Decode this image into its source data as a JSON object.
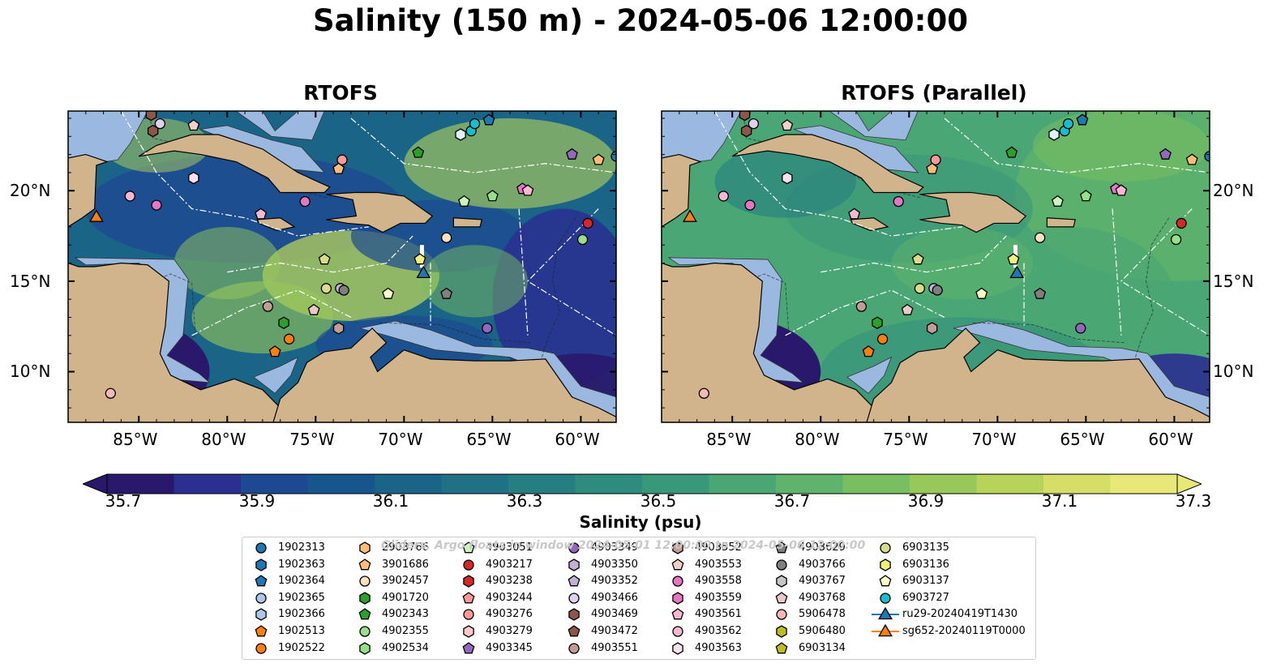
{
  "figure": {
    "title": "Salinity (150 m) - 2024-05-06 12:00:00",
    "colorbar_label": "Salinity (psu)",
    "watermark": "Gliders, Argo floats in window 2024-05-01 12:00:00 to 2024-05-06 12:00:00"
  },
  "panels": [
    {
      "title": "RTOFS"
    },
    {
      "title": "RTOFS (Parallel)"
    }
  ],
  "axes": {
    "lon_ticks": [
      "85°W",
      "80°W",
      "75°W",
      "70°W",
      "65°W",
      "60°W"
    ],
    "lat_ticks": [
      "20°N",
      "15°N",
      "10°N"
    ]
  },
  "colorbar": {
    "ticks": [
      "35.7",
      "35.9",
      "36.1",
      "36.3",
      "36.5",
      "36.7",
      "36.9",
      "37.1",
      "37.3"
    ],
    "min": 35.7,
    "max": 37.3,
    "extend": "both",
    "colormap": "haline",
    "colors": [
      "#2a186c",
      "#2a2f90",
      "#1d4992",
      "#16568c",
      "#1a6487",
      "#207185",
      "#267e82",
      "#2e8b7e",
      "#3a987a",
      "#4aa674",
      "#5fb36c",
      "#79be60",
      "#97c859",
      "#b8d35a",
      "#d6de68",
      "#e8e878"
    ]
  },
  "map_colors": {
    "land": "#d2b48c",
    "shallow": "#9ab8e0",
    "deep_min": "#2a186c",
    "high_salinity": "#d6de68"
  },
  "legend": {
    "columns": [
      [
        {
          "label": "1902313",
          "marker": "circle",
          "color": "#1f77b4"
        },
        {
          "label": "1902363",
          "marker": "hexagon",
          "color": "#1f77b4"
        },
        {
          "label": "1902364",
          "marker": "pentagon",
          "color": "#1f77b4"
        },
        {
          "label": "1902365",
          "marker": "circle",
          "color": "#aec7e8"
        },
        {
          "label": "1902366",
          "marker": "hexagon",
          "color": "#aec7e8"
        },
        {
          "label": "1902513",
          "marker": "pentagon",
          "color": "#ff7f0e"
        },
        {
          "label": "1902522",
          "marker": "circle",
          "color": "#ff7f0e"
        }
      ],
      [
        {
          "label": "2903766",
          "marker": "hexagon",
          "color": "#ffbb78"
        },
        {
          "label": "3901686",
          "marker": "pentagon",
          "color": "#ffbb78"
        },
        {
          "label": "3902457",
          "marker": "circle",
          "color": "#ffe0c0"
        },
        {
          "label": "4901720",
          "marker": "hexagon",
          "color": "#2ca02c"
        },
        {
          "label": "4902343",
          "marker": "pentagon",
          "color": "#2ca02c"
        },
        {
          "label": "4902355",
          "marker": "circle",
          "color": "#98df8a"
        },
        {
          "label": "4902534",
          "marker": "hexagon",
          "color": "#98df8a"
        }
      ],
      [
        {
          "label": "4903051",
          "marker": "pentagon",
          "color": "#c8f5c0"
        },
        {
          "label": "4903217",
          "marker": "circle",
          "color": "#d62728"
        },
        {
          "label": "4903238",
          "marker": "hexagon",
          "color": "#d62728"
        },
        {
          "label": "4903244",
          "marker": "pentagon",
          "color": "#ff9896"
        },
        {
          "label": "4903276",
          "marker": "circle",
          "color": "#ff9896"
        },
        {
          "label": "4903279",
          "marker": "hexagon",
          "color": "#ffc8c8"
        },
        {
          "label": "4903345",
          "marker": "pentagon",
          "color": "#9467bd"
        }
      ],
      [
        {
          "label": "4903349",
          "marker": "circle",
          "color": "#9467bd"
        },
        {
          "label": "4903350",
          "marker": "hexagon",
          "color": "#c5b0d5"
        },
        {
          "label": "4903352",
          "marker": "pentagon",
          "color": "#c5b0d5"
        },
        {
          "label": "4903466",
          "marker": "circle",
          "color": "#e0d0f0"
        },
        {
          "label": "4903469",
          "marker": "hexagon",
          "color": "#8c564b"
        },
        {
          "label": "4903472",
          "marker": "pentagon",
          "color": "#8c564b"
        },
        {
          "label": "4903551",
          "marker": "circle",
          "color": "#c49c94"
        }
      ],
      [
        {
          "label": "4903552",
          "marker": "hexagon",
          "color": "#c49c94"
        },
        {
          "label": "4903553",
          "marker": "pentagon",
          "color": "#f0d0c8"
        },
        {
          "label": "4903558",
          "marker": "circle",
          "color": "#e377c2"
        },
        {
          "label": "4903559",
          "marker": "hexagon",
          "color": "#e377c2"
        },
        {
          "label": "4903561",
          "marker": "pentagon",
          "color": "#f7b6d2"
        },
        {
          "label": "4903562",
          "marker": "circle",
          "color": "#f7b6d2"
        },
        {
          "label": "4903563",
          "marker": "hexagon",
          "color": "#fbe0ee"
        }
      ],
      [
        {
          "label": "4903629",
          "marker": "pentagon",
          "color": "#7f7f7f"
        },
        {
          "label": "4903766",
          "marker": "circle",
          "color": "#7f7f7f"
        },
        {
          "label": "4903767",
          "marker": "hexagon",
          "color": "#c7c7c7"
        },
        {
          "label": "4903768",
          "marker": "pentagon",
          "color": "#e8c8c8"
        },
        {
          "label": "5906478",
          "marker": "circle",
          "color": "#f5b8b8"
        },
        {
          "label": "5906480",
          "marker": "hexagon",
          "color": "#bcbd22"
        },
        {
          "label": "6903134",
          "marker": "pentagon",
          "color": "#bcbd22"
        }
      ],
      [
        {
          "label": "6903135",
          "marker": "circle",
          "color": "#dbdb8d"
        },
        {
          "label": "6903136",
          "marker": "hexagon",
          "color": "#f0f07a"
        },
        {
          "label": "6903137",
          "marker": "pentagon",
          "color": "#fafac8"
        },
        {
          "label": "6903727",
          "marker": "circle",
          "color": "#17becf"
        },
        {
          "label": "ru29-20240419T1430",
          "marker": "triangle-line",
          "color": "#1f77b4"
        },
        {
          "label": "sg652-20240119T0000",
          "marker": "triangle-line",
          "color": "#ff7f0e"
        }
      ]
    ]
  },
  "floats": [
    {
      "lon": -84.3,
      "lat": 24.2,
      "marker": "hexagon",
      "color": "#8c564b"
    },
    {
      "lon": -84.2,
      "lat": 23.3,
      "marker": "hexagon",
      "color": "#8c564b"
    },
    {
      "lon": -83.8,
      "lat": 23.7,
      "marker": "circle",
      "color": "#e0d0f0"
    },
    {
      "lon": -81.9,
      "lat": 23.6,
      "marker": "pentagon",
      "color": "#f0d0c8"
    },
    {
      "lon": -73.5,
      "lat": 21.7,
      "marker": "circle",
      "color": "#ff9896"
    },
    {
      "lon": -73.7,
      "lat": 21.2,
      "marker": "pentagon",
      "color": "#ffbb78"
    },
    {
      "lon": -81.9,
      "lat": 20.7,
      "marker": "hexagon",
      "color": "#fbe0ee"
    },
    {
      "lon": -85.5,
      "lat": 19.7,
      "marker": "circle",
      "color": "#f7b6d2"
    },
    {
      "lon": -84.0,
      "lat": 19.2,
      "marker": "circle",
      "color": "#e377c2"
    },
    {
      "lon": -75.6,
      "lat": 19.4,
      "marker": "circle",
      "color": "#e377c2"
    },
    {
      "lon": -78.1,
      "lat": 18.7,
      "marker": "pentagon",
      "color": "#f7b6d2"
    },
    {
      "lon": -69.2,
      "lat": 22.1,
      "marker": "pentagon",
      "color": "#2ca02c"
    },
    {
      "lon": -66.8,
      "lat": 23.1,
      "marker": "hexagon",
      "color": "#e0f0ff"
    },
    {
      "lon": -66.2,
      "lat": 23.3,
      "marker": "circle",
      "color": "#17becf"
    },
    {
      "lon": -66.0,
      "lat": 23.7,
      "marker": "circle",
      "color": "#17becf"
    },
    {
      "lon": -65.2,
      "lat": 23.9,
      "marker": "pentagon",
      "color": "#1f77b4"
    },
    {
      "lon": -60.5,
      "lat": 22.0,
      "marker": "pentagon",
      "color": "#9467bd"
    },
    {
      "lon": -59.0,
      "lat": 21.7,
      "marker": "pentagon",
      "color": "#ffbb78"
    },
    {
      "lon": -58.0,
      "lat": 21.9,
      "marker": "circle",
      "color": "#1f77b4"
    },
    {
      "lon": -66.6,
      "lat": 19.4,
      "marker": "pentagon",
      "color": "#c8f5c0"
    },
    {
      "lon": -65.0,
      "lat": 19.7,
      "marker": "pentagon",
      "color": "#98df8a"
    },
    {
      "lon": -63.3,
      "lat": 20.1,
      "marker": "pentagon",
      "color": "#e377c2"
    },
    {
      "lon": -63.0,
      "lat": 20.0,
      "marker": "pentagon",
      "color": "#f7b6d2"
    },
    {
      "lon": -59.6,
      "lat": 18.2,
      "marker": "circle",
      "color": "#d62728"
    },
    {
      "lon": -59.9,
      "lat": 17.3,
      "marker": "circle",
      "color": "#98df8a"
    },
    {
      "lon": -67.6,
      "lat": 17.4,
      "marker": "circle",
      "color": "#ffe0c0"
    },
    {
      "lon": -74.5,
      "lat": 16.2,
      "marker": "pentagon",
      "color": "#dbdb8d"
    },
    {
      "lon": -69.1,
      "lat": 16.2,
      "marker": "pentagon",
      "color": "#f0f07a"
    },
    {
      "lon": -74.4,
      "lat": 14.6,
      "marker": "circle",
      "color": "#dbdb8d"
    },
    {
      "lon": -73.6,
      "lat": 14.6,
      "marker": "circle",
      "color": "#c5b0d5"
    },
    {
      "lon": -73.4,
      "lat": 14.5,
      "marker": "circle",
      "color": "#7f7f7f"
    },
    {
      "lon": -70.9,
      "lat": 14.3,
      "marker": "pentagon",
      "color": "#fafac8"
    },
    {
      "lon": -67.6,
      "lat": 14.3,
      "marker": "pentagon",
      "color": "#7f7f7f"
    },
    {
      "lon": -75.1,
      "lat": 13.4,
      "marker": "pentagon",
      "color": "#e8c8c8"
    },
    {
      "lon": -77.7,
      "lat": 13.6,
      "marker": "circle",
      "color": "#c49c94"
    },
    {
      "lon": -76.8,
      "lat": 12.7,
      "marker": "hexagon",
      "color": "#2ca02c"
    },
    {
      "lon": -76.5,
      "lat": 11.8,
      "marker": "circle",
      "color": "#ff7f0e"
    },
    {
      "lon": -77.3,
      "lat": 11.1,
      "marker": "pentagon",
      "color": "#ff7f0e"
    },
    {
      "lon": -73.7,
      "lat": 12.4,
      "marker": "hexagon",
      "color": "#c49c94"
    },
    {
      "lon": -65.3,
      "lat": 12.4,
      "marker": "circle",
      "color": "#9467bd"
    },
    {
      "lon": -86.6,
      "lat": 8.8,
      "marker": "circle",
      "color": "#f5b8b8"
    }
  ],
  "gliders": [
    {
      "name": "ru29-20240419T1430",
      "lon": -68.9,
      "lat": 15.4,
      "color": "#1f77b4"
    },
    {
      "name": "sg652-20240119T0000",
      "lon": -87.4,
      "lat": 18.5,
      "color": "#ff7f0e"
    }
  ]
}
